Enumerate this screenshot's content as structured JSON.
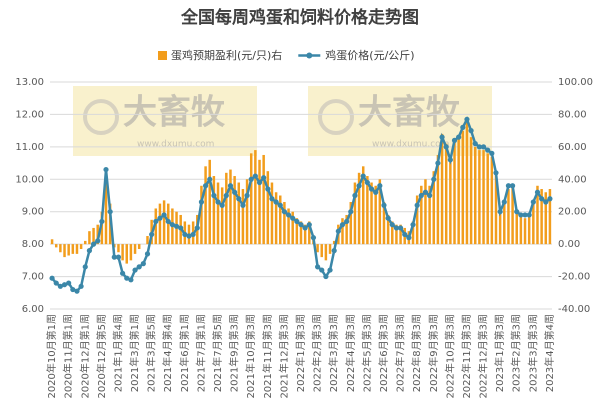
{
  "chart_data": {
    "type": "bar-line",
    "title": "全国每周鸡蛋和饲料价格走势图",
    "watermarks": [
      {
        "brand": "大畜牧",
        "url": "www.dxumu.com"
      },
      {
        "brand": "大畜牧",
        "url": "www.dxumu.com"
      }
    ],
    "categories": [
      "2020年10月第1周",
      null,
      null,
      null,
      "2020年11月第1周",
      null,
      null,
      null,
      "2020年12月第1周",
      null,
      null,
      null,
      "2020年12月第5周",
      null,
      null,
      null,
      "2021年1月第4周",
      null,
      null,
      null,
      "2021年3月第1周",
      null,
      null,
      null,
      "2021年3月第5周",
      null,
      null,
      null,
      "2021年4月第4周",
      null,
      null,
      null,
      "2021年6月第1周",
      null,
      null,
      null,
      "2021年7月第1周",
      null,
      null,
      null,
      "2021年7月第5周",
      null,
      null,
      null,
      "2021年9月第3周",
      null,
      null,
      null,
      "2021年10月第3周",
      null,
      null,
      null,
      "2021年11月第3周",
      null,
      null,
      null,
      "2021年12月第3周",
      null,
      null,
      null,
      "2022年1月第3周",
      null,
      null,
      null,
      "2022年2月第3周",
      null,
      null,
      null,
      "2022年3月第3周",
      null,
      null,
      null,
      "2022年4月第3周",
      null,
      null,
      null,
      "2022年5月第3周",
      null,
      null,
      null,
      "2022年6月第3周",
      null,
      null,
      null,
      "2022年7月第3周",
      null,
      null,
      null,
      "2022年8月第3周",
      null,
      null,
      null,
      "2022年9月第3周",
      null,
      null,
      null,
      "2022年10月第3周",
      null,
      null,
      null,
      "2022年11月第3周",
      null,
      null,
      null,
      "2022年12月第3周",
      null,
      null,
      null,
      "2023年1月第3周",
      null,
      null,
      null,
      "2023年2月第3周",
      null,
      null,
      null,
      "2023年3月第3周",
      null,
      null,
      null,
      "2023年4月第4周"
    ],
    "series": [
      {
        "name": "蛋鸡预期盈利(元/只)右",
        "color": "#f29d1c",
        "axis": "y2",
        "kind": "bar",
        "values": [
          3,
          -2,
          -5,
          -8,
          -7,
          -6,
          -6,
          -3,
          2,
          8,
          10,
          12,
          20,
          45,
          25,
          -2,
          -5,
          -10,
          -12,
          -10,
          -6,
          -3,
          0,
          5,
          15,
          22,
          25,
          27,
          25,
          22,
          20,
          18,
          14,
          12,
          14,
          18,
          36,
          48,
          52,
          42,
          38,
          35,
          44,
          46,
          42,
          38,
          34,
          40,
          56,
          58,
          52,
          55,
          45,
          38,
          32,
          30,
          26,
          22,
          20,
          16,
          14,
          12,
          14,
          5,
          -5,
          -8,
          -10,
          -6,
          2,
          12,
          16,
          18,
          26,
          38,
          44,
          48,
          42,
          38,
          36,
          40,
          26,
          18,
          14,
          12,
          12,
          10,
          8,
          14,
          30,
          36,
          40,
          36,
          45,
          55,
          68,
          62,
          52,
          64,
          66,
          70,
          75,
          66,
          60,
          58,
          58,
          56,
          54,
          44,
          20,
          26,
          34,
          36,
          20,
          18,
          16,
          18,
          26,
          36,
          34,
          32,
          34
        ]
      },
      {
        "name": "鸡蛋价格(元/公斤)",
        "color": "#3b87a8",
        "axis": "y",
        "kind": "line",
        "values": [
          6.95,
          6.8,
          6.7,
          6.75,
          6.8,
          6.6,
          6.55,
          6.7,
          7.3,
          7.8,
          8.0,
          8.1,
          8.7,
          10.3,
          9.0,
          7.6,
          7.6,
          7.1,
          6.95,
          6.9,
          7.2,
          7.3,
          7.4,
          7.7,
          8.3,
          8.7,
          8.8,
          8.9,
          8.7,
          8.6,
          8.55,
          8.5,
          8.3,
          8.25,
          8.3,
          8.5,
          9.3,
          9.8,
          10.0,
          9.5,
          9.3,
          9.2,
          9.5,
          9.8,
          9.6,
          9.4,
          9.2,
          9.5,
          10.0,
          10.1,
          9.9,
          10.05,
          9.7,
          9.4,
          9.3,
          9.2,
          9.0,
          8.9,
          8.8,
          8.7,
          8.6,
          8.5,
          8.6,
          8.2,
          7.3,
          7.2,
          7.0,
          7.2,
          7.8,
          8.4,
          8.6,
          8.7,
          9.0,
          9.5,
          9.8,
          10.1,
          9.9,
          9.7,
          9.6,
          9.8,
          9.2,
          8.8,
          8.6,
          8.5,
          8.5,
          8.3,
          8.2,
          8.6,
          9.2,
          9.5,
          9.6,
          9.5,
          10.0,
          10.5,
          11.3,
          11.0,
          10.6,
          11.2,
          11.3,
          11.6,
          11.85,
          11.5,
          11.1,
          11.0,
          11.0,
          10.9,
          10.8,
          10.2,
          9.0,
          9.3,
          9.8,
          9.8,
          9.0,
          8.9,
          8.9,
          8.9,
          9.3,
          9.6,
          9.4,
          9.3,
          9.4
        ]
      }
    ],
    "ylim": [
      6,
      13
    ],
    "yticks": [
      {
        "value": 6,
        "label": "6.00"
      },
      {
        "value": 7,
        "label": "7.00"
      },
      {
        "value": 8,
        "label": "8.00"
      },
      {
        "value": 9,
        "label": "9.00"
      },
      {
        "value": 10,
        "label": "10.00"
      },
      {
        "value": 11,
        "label": "11.00"
      },
      {
        "value": 12,
        "label": "12.00"
      },
      {
        "value": 13,
        "label": "13.00"
      }
    ],
    "y2lim": [
      -40,
      100
    ],
    "y2ticks": [
      {
        "value": -40,
        "label": "-40.00"
      },
      {
        "value": -20,
        "label": "-20.00"
      },
      {
        "value": 0,
        "label": "0.00"
      },
      {
        "value": 20,
        "label": "20.00"
      },
      {
        "value": 40,
        "label": "40.00"
      },
      {
        "value": 60,
        "label": "60.00"
      },
      {
        "value": 80,
        "label": "80.00"
      },
      {
        "value": 100,
        "label": "100.00"
      }
    ],
    "grid": true
  }
}
